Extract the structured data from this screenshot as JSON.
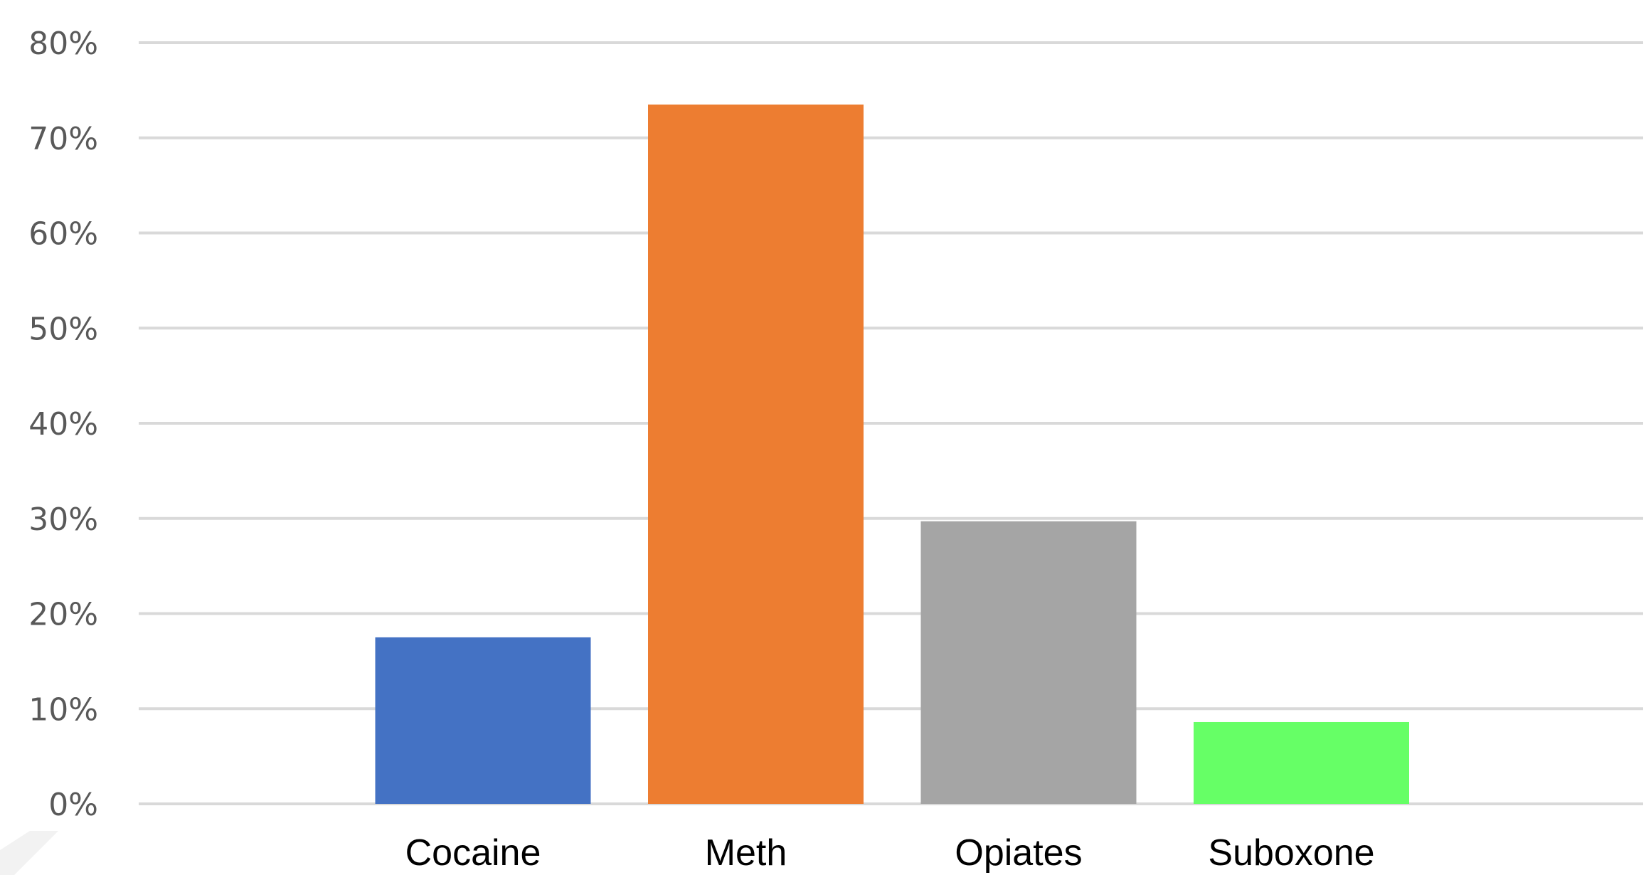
{
  "chart_data": {
    "type": "bar",
    "categories": [
      "Cocaine",
      "Meth",
      "Opiates",
      "Suboxone"
    ],
    "values": [
      17.5,
      73.5,
      29.7,
      8.6
    ],
    "colors": [
      "#4472c4",
      "#ed7d31",
      "#a5a5a5",
      "#66ff66"
    ],
    "ylim": [
      0,
      80
    ],
    "yticks": [
      0,
      10,
      20,
      30,
      40,
      50,
      60,
      70,
      80
    ],
    "ytick_labels": [
      "0%",
      "10%",
      "20%",
      "30%",
      "40%",
      "50%",
      "60%",
      "70%",
      "80%"
    ],
    "title": "",
    "xlabel": "",
    "ylabel": "",
    "grid": true,
    "legend": "none"
  }
}
